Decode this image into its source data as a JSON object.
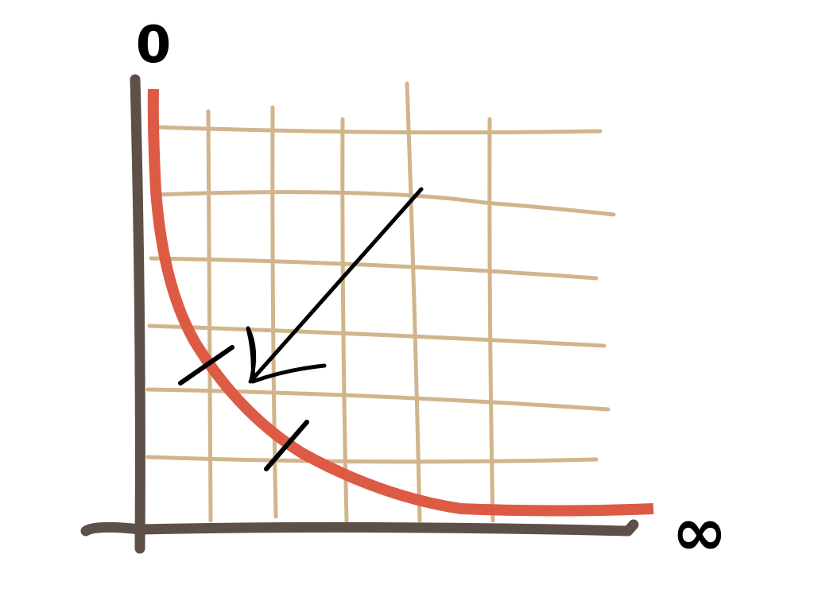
{
  "labels": {
    "top": "0",
    "right": "∞"
  },
  "colors": {
    "grid": "#d2b48c",
    "axis": "#5e5049",
    "curve": "#dd5a45",
    "ink": "#000000",
    "background": "#ffffff"
  },
  "icons": {
    "arrow": "arrow-down-left-icon"
  }
}
